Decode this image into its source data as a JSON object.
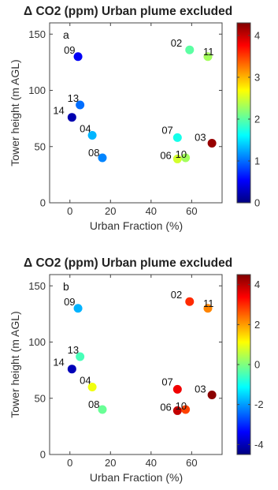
{
  "chart_data": [
    {
      "type": "scatter",
      "panel_letter": "a",
      "title": "Δ CO2 (ppm) Urban plume excluded",
      "xlabel": "Urban Fraction (%)",
      "ylabel": "Tower height (m AGL)",
      "xlim": [
        -10,
        75
      ],
      "ylim": [
        0,
        160
      ],
      "xticks": [
        0,
        20,
        40,
        60
      ],
      "yticks": [
        0,
        50,
        100,
        150
      ],
      "colorbar": {
        "min": 0,
        "max": 4.3,
        "ticks": [
          0,
          1,
          2,
          3,
          4
        ],
        "colormap": "jet"
      },
      "points": [
        {
          "label": "09",
          "x": 4,
          "y": 130,
          "value": 0.5
        },
        {
          "label": "02",
          "x": 59,
          "y": 136,
          "value": 2.0
        },
        {
          "label": "11",
          "x": 68,
          "y": 130,
          "value": 2.3
        },
        {
          "label": "13",
          "x": 5,
          "y": 87,
          "value": 1.0
        },
        {
          "label": "14",
          "x": 1,
          "y": 76,
          "value": 0.2
        },
        {
          "label": "04",
          "x": 11,
          "y": 60,
          "value": 1.3
        },
        {
          "label": "08",
          "x": 16,
          "y": 40,
          "value": 1.1
        },
        {
          "label": "07",
          "x": 53,
          "y": 58,
          "value": 1.7
        },
        {
          "label": "03",
          "x": 70,
          "y": 53,
          "value": 4.2
        },
        {
          "label": "06",
          "x": 53,
          "y": 39,
          "value": 2.5
        },
        {
          "label": "10",
          "x": 57,
          "y": 40,
          "value": 2.3
        }
      ]
    },
    {
      "type": "scatter",
      "panel_letter": "b",
      "title": "Δ CO2 (ppm) Urban plume excluded",
      "xlabel": "Urban Fraction (%)",
      "ylabel": "Tower height (m AGL)",
      "xlim": [
        -10,
        75
      ],
      "ylim": [
        0,
        160
      ],
      "xticks": [
        0,
        20,
        40,
        60
      ],
      "yticks": [
        0,
        50,
        100,
        150
      ],
      "colorbar": {
        "min": -4.5,
        "max": 4.5,
        "ticks": [
          -4,
          -2,
          0,
          2,
          4
        ],
        "colormap": "jet"
      },
      "points": [
        {
          "label": "09",
          "x": 4,
          "y": 130,
          "value": -1.8
        },
        {
          "label": "02",
          "x": 59,
          "y": 136,
          "value": 3.0
        },
        {
          "label": "11",
          "x": 68,
          "y": 130,
          "value": 2.2
        },
        {
          "label": "13",
          "x": 5,
          "y": 87,
          "value": -0.5
        },
        {
          "label": "14",
          "x": 1,
          "y": 76,
          "value": -4.0
        },
        {
          "label": "04",
          "x": 11,
          "y": 60,
          "value": 1.0
        },
        {
          "label": "08",
          "x": 16,
          "y": 40,
          "value": -0.2
        },
        {
          "label": "07",
          "x": 53,
          "y": 58,
          "value": 3.5
        },
        {
          "label": "03",
          "x": 70,
          "y": 53,
          "value": 4.4
        },
        {
          "label": "06",
          "x": 53,
          "y": 39,
          "value": 3.9
        },
        {
          "label": "10",
          "x": 57,
          "y": 40,
          "value": 2.8
        }
      ]
    }
  ]
}
